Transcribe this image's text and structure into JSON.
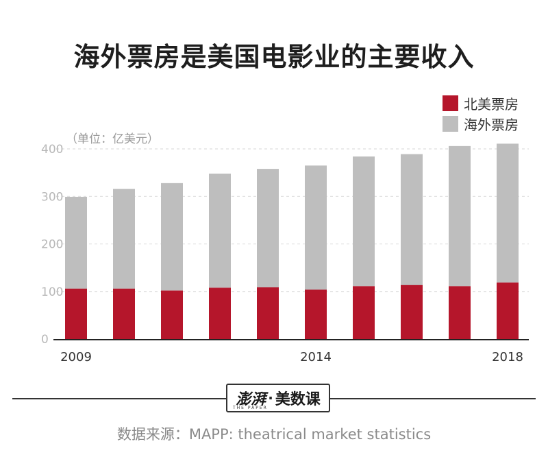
{
  "header": {
    "title": "海外票房是美国电影业的主要收入"
  },
  "unit_label": "（单位：亿美元）",
  "legend": [
    {
      "label": "北美票房",
      "color": "#b5162b"
    },
    {
      "label": "海外票房",
      "color": "#bebebe"
    }
  ],
  "chart_data": {
    "type": "bar",
    "stacked": true,
    "categories": [
      "2009",
      "2010",
      "2011",
      "2012",
      "2013",
      "2014",
      "2015",
      "2016",
      "2017",
      "2018"
    ],
    "x_tick_labels": [
      "2009",
      "",
      "",
      "",
      "",
      "2014",
      "",
      "",
      "",
      "2018"
    ],
    "series": [
      {
        "name": "北美票房",
        "values": [
          106,
          106,
          102,
          108,
          109,
          104,
          111,
          114,
          111,
          119
        ]
      },
      {
        "name": "海外票房",
        "values": [
          193,
          210,
          226,
          240,
          249,
          261,
          273,
          275,
          295,
          292
        ]
      }
    ],
    "ylim": [
      0,
      400
    ],
    "yticks": [
      0,
      100,
      200,
      300,
      400
    ],
    "grid": true,
    "legend_position": "top-right"
  },
  "footer": {
    "logo_mark": "澎湃",
    "logo_sub": "THE PAPER",
    "logo_dot": "·",
    "logo_name": "美数课",
    "source": "数据来源：MAPP: theatrical market statistics"
  }
}
